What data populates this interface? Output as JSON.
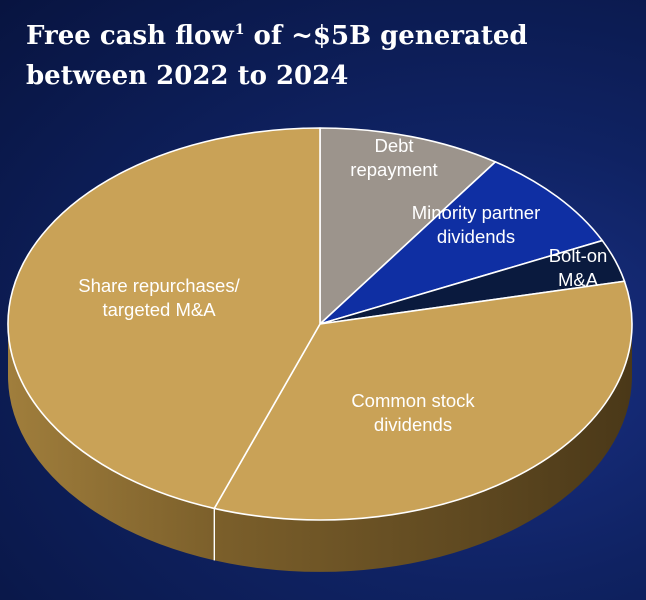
{
  "title": {
    "line1_before": "Free cash flow",
    "superscript": "1",
    "line1_after": " of ~$5B generated",
    "line2": "between 2022 to 2024"
  },
  "chart_data": {
    "type": "pie",
    "style": "3d",
    "title": "Free cash flow1 of ~$5B generated between 2022 to 2024",
    "slices": [
      {
        "label": "Debt repayment",
        "label_lines": [
          "Debt",
          "repayment"
        ],
        "percent": 9.5,
        "color": "#9c948c",
        "text_color": "#ffffff"
      },
      {
        "label": "Minority partner dividends",
        "label_lines": [
          "Minority partner",
          "dividends"
        ],
        "percent": 8.5,
        "color": "#0f2fa3",
        "text_color": "#ffffff"
      },
      {
        "label": "Bolt-on M&A",
        "label_lines": [
          "Bolt-on",
          "M&A"
        ],
        "percent": 3.5,
        "color": "#0a1a3e",
        "text_color": "#ffffff"
      },
      {
        "label": "Common stock dividends",
        "label_lines": [
          "Common stock",
          "dividends"
        ],
        "percent": 34.0,
        "color": "#c9a257",
        "text_color": "#ffffff"
      },
      {
        "label": "Share repurchases/ targeted M&A",
        "label_lines": [
          "Share repurchases/",
          "targeted M&A"
        ],
        "percent": 44.5,
        "color": "#c9a257",
        "text_color": "#ffffff"
      }
    ]
  }
}
